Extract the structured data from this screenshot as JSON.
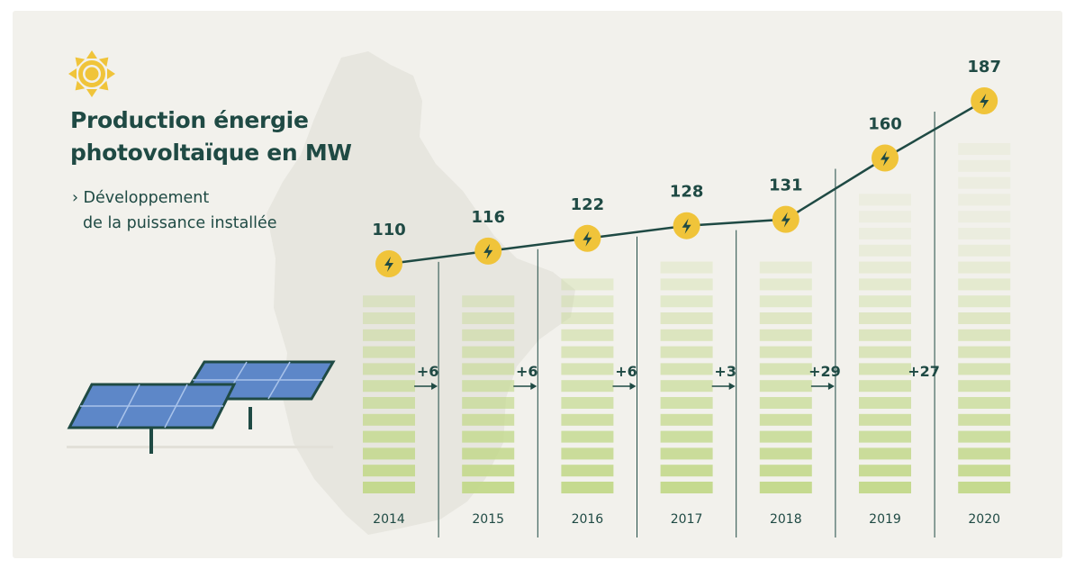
{
  "title_line1": "Production énergie",
  "title_line2": "photovoltaïque en MW",
  "subtitle_line1": "› Développement",
  "subtitle_line2": "de la puissance installée",
  "icons": {
    "top_left": "sun-icon",
    "marker": "lightning-bolt-icon",
    "illustration": "solar-panels-icon",
    "background": "luxembourg-map-silhouette"
  },
  "colors": {
    "background": "#f2f1ec",
    "text": "#1f4a44",
    "line": "#1f4a44",
    "marker": "#f0c43a",
    "bar": "#c2d88a",
    "panel": "#5d87c8"
  },
  "chart_data": {
    "type": "line",
    "title": "Production énergie photovoltaïque en MW",
    "subtitle": "› Développement de la puissance installée",
    "categories": [
      "2014",
      "2015",
      "2016",
      "2017",
      "2018",
      "2019",
      "2020"
    ],
    "values": [
      110,
      116,
      122,
      128,
      131,
      160,
      187
    ],
    "value_labels": [
      "110",
      "116",
      "122",
      "128",
      "131",
      "160",
      "187"
    ],
    "deltas": [
      "+6",
      "+6",
      "+6",
      "+3",
      "+29",
      "+27"
    ],
    "unit": "MW",
    "grid": false,
    "legend": "none"
  }
}
